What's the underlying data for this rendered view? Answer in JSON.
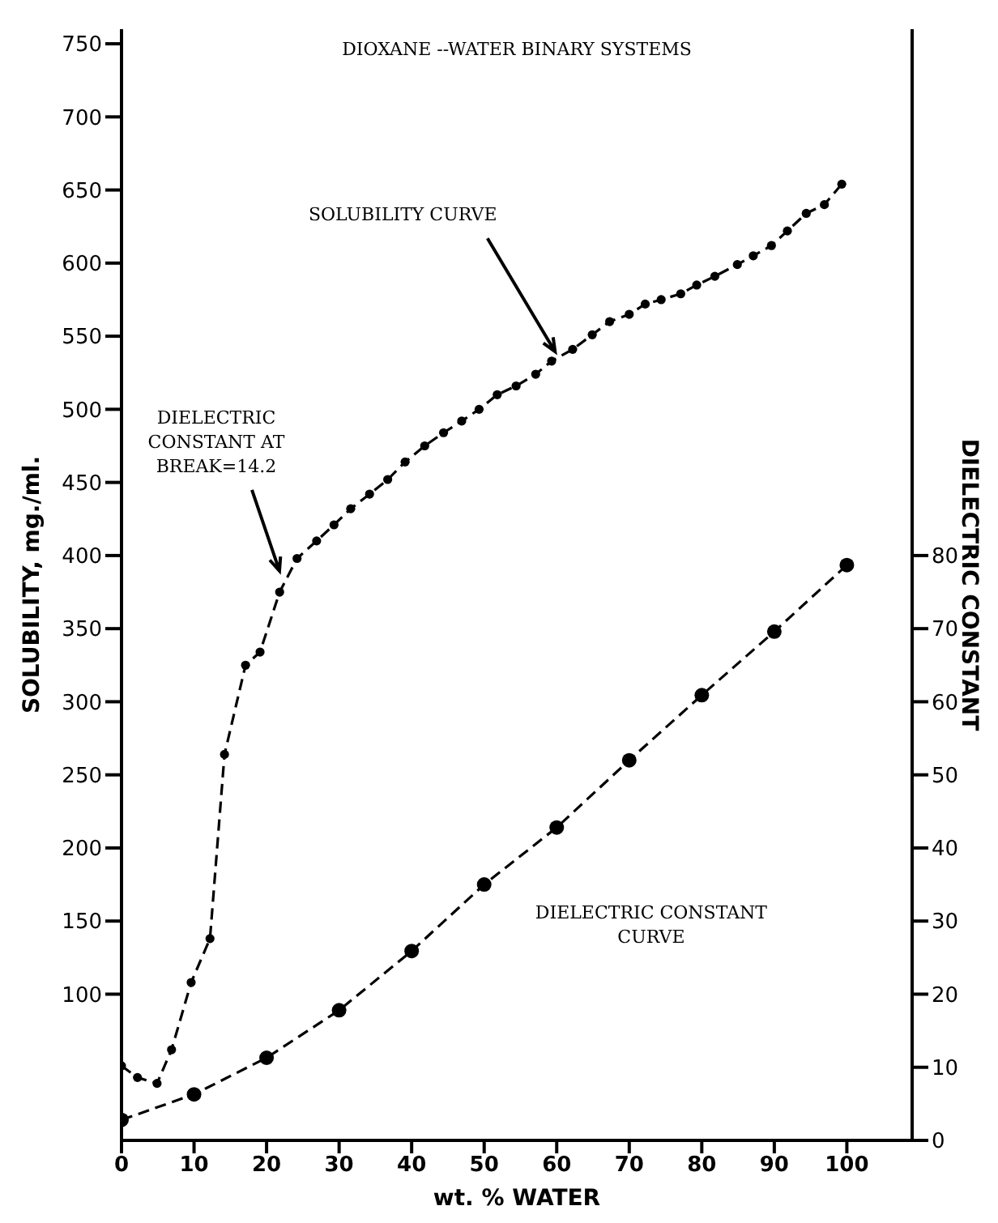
{
  "chart_data": {
    "type": "line",
    "title": "DIOXANE --WATER BINARY SYSTEMS",
    "xlabel": "wt. % WATER",
    "ylabel": "SOLUBILITY, mg./ml.",
    "y2label": "DIELECTRIC CONSTANT",
    "xlim": [
      0,
      109
    ],
    "xticks": [
      0,
      10,
      20,
      30,
      40,
      50,
      60,
      70,
      80,
      90,
      100
    ],
    "ylim": [
      0,
      760
    ],
    "yticks": [
      100,
      150,
      200,
      250,
      300,
      350,
      400,
      450,
      500,
      550,
      600,
      650,
      700,
      750
    ],
    "y2lim": [
      0,
      152
    ],
    "y2ticks": [
      0,
      10,
      20,
      30,
      40,
      50,
      60,
      70,
      80
    ],
    "marker": "circle",
    "line_style": "dashed",
    "series": [
      {
        "color": "#000000",
        "x": [
          0,
          2.2,
          4.9,
          6.9,
          9.6,
          12.2,
          14.2,
          17.1,
          19.1,
          21.8,
          24.2,
          26.9,
          29.3,
          31.6,
          34.2,
          36.7,
          39.1,
          41.8,
          44.4,
          46.9,
          49.3,
          51.8,
          54.4,
          57.1,
          59.3,
          62.2,
          64.9,
          67.3,
          70,
          72.2,
          74.4,
          77.1,
          79.3,
          81.8,
          84.9,
          87.1,
          89.6,
          91.8,
          94.4,
          96.9,
          99.3
        ],
        "values": [
          51,
          43,
          39,
          62,
          108,
          138,
          264,
          325,
          334,
          375,
          398,
          410,
          421,
          432,
          442,
          452,
          464,
          475,
          484,
          492,
          500,
          510,
          516,
          524,
          533,
          541,
          551,
          560,
          565,
          572,
          575,
          579,
          585,
          591,
          599,
          605,
          612,
          622,
          634,
          640,
          654
        ]
      },
      {
        "color": "#000000",
        "axis": "y2",
        "x": [
          0,
          10,
          20,
          30,
          40,
          50,
          60,
          70,
          80,
          90,
          100
        ],
        "values": [
          2.8,
          6.3,
          11.3,
          17.8,
          25.9,
          35,
          42.8,
          52,
          60.9,
          69.6,
          78.7
        ]
      }
    ],
    "annotations": [
      {
        "text": "SOLUBILITY CURVE",
        "x": 60,
        "y": 535
      },
      {
        "text": "DIELECTRIC CONSTANT AT BREAK=14.2",
        "x": 22,
        "y": 385
      },
      "DIELECTRIC CONSTANT CURVE"
    ]
  }
}
